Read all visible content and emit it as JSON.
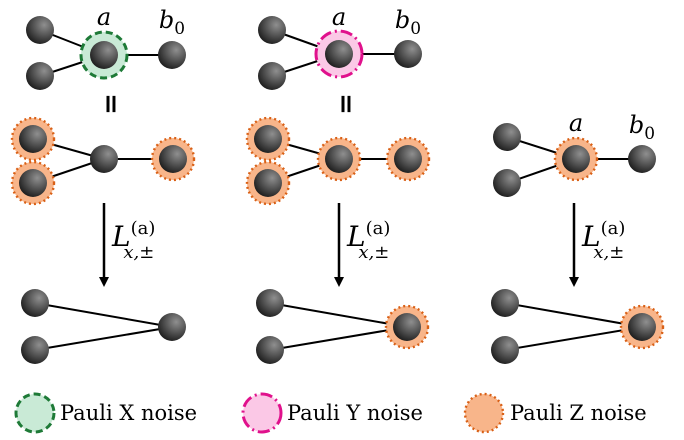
{
  "labels": {
    "vertex_a": "a",
    "vertex_b": "b",
    "vertex_b_sub": "0",
    "equals": "=",
    "operator_base": "L",
    "operator_sup": "(a)",
    "operator_sub": "x,±"
  },
  "legend": [
    {
      "key": "x",
      "label": "Pauli X noise"
    },
    {
      "key": "y",
      "label": "Pauli Y noise"
    },
    {
      "key": "z",
      "label": "Pauli Z noise"
    }
  ],
  "colors": {
    "x_fill": "#c9ead6",
    "x_stroke": "#1e7a37",
    "y_fill": "#fbc8e6",
    "y_stroke": "#e0118c",
    "z_fill": "#f8b58a",
    "z_stroke": "#d96016",
    "edge": "#000000",
    "node_dark": "#1a1a1a",
    "node_light": "#8f8f8f"
  }
}
